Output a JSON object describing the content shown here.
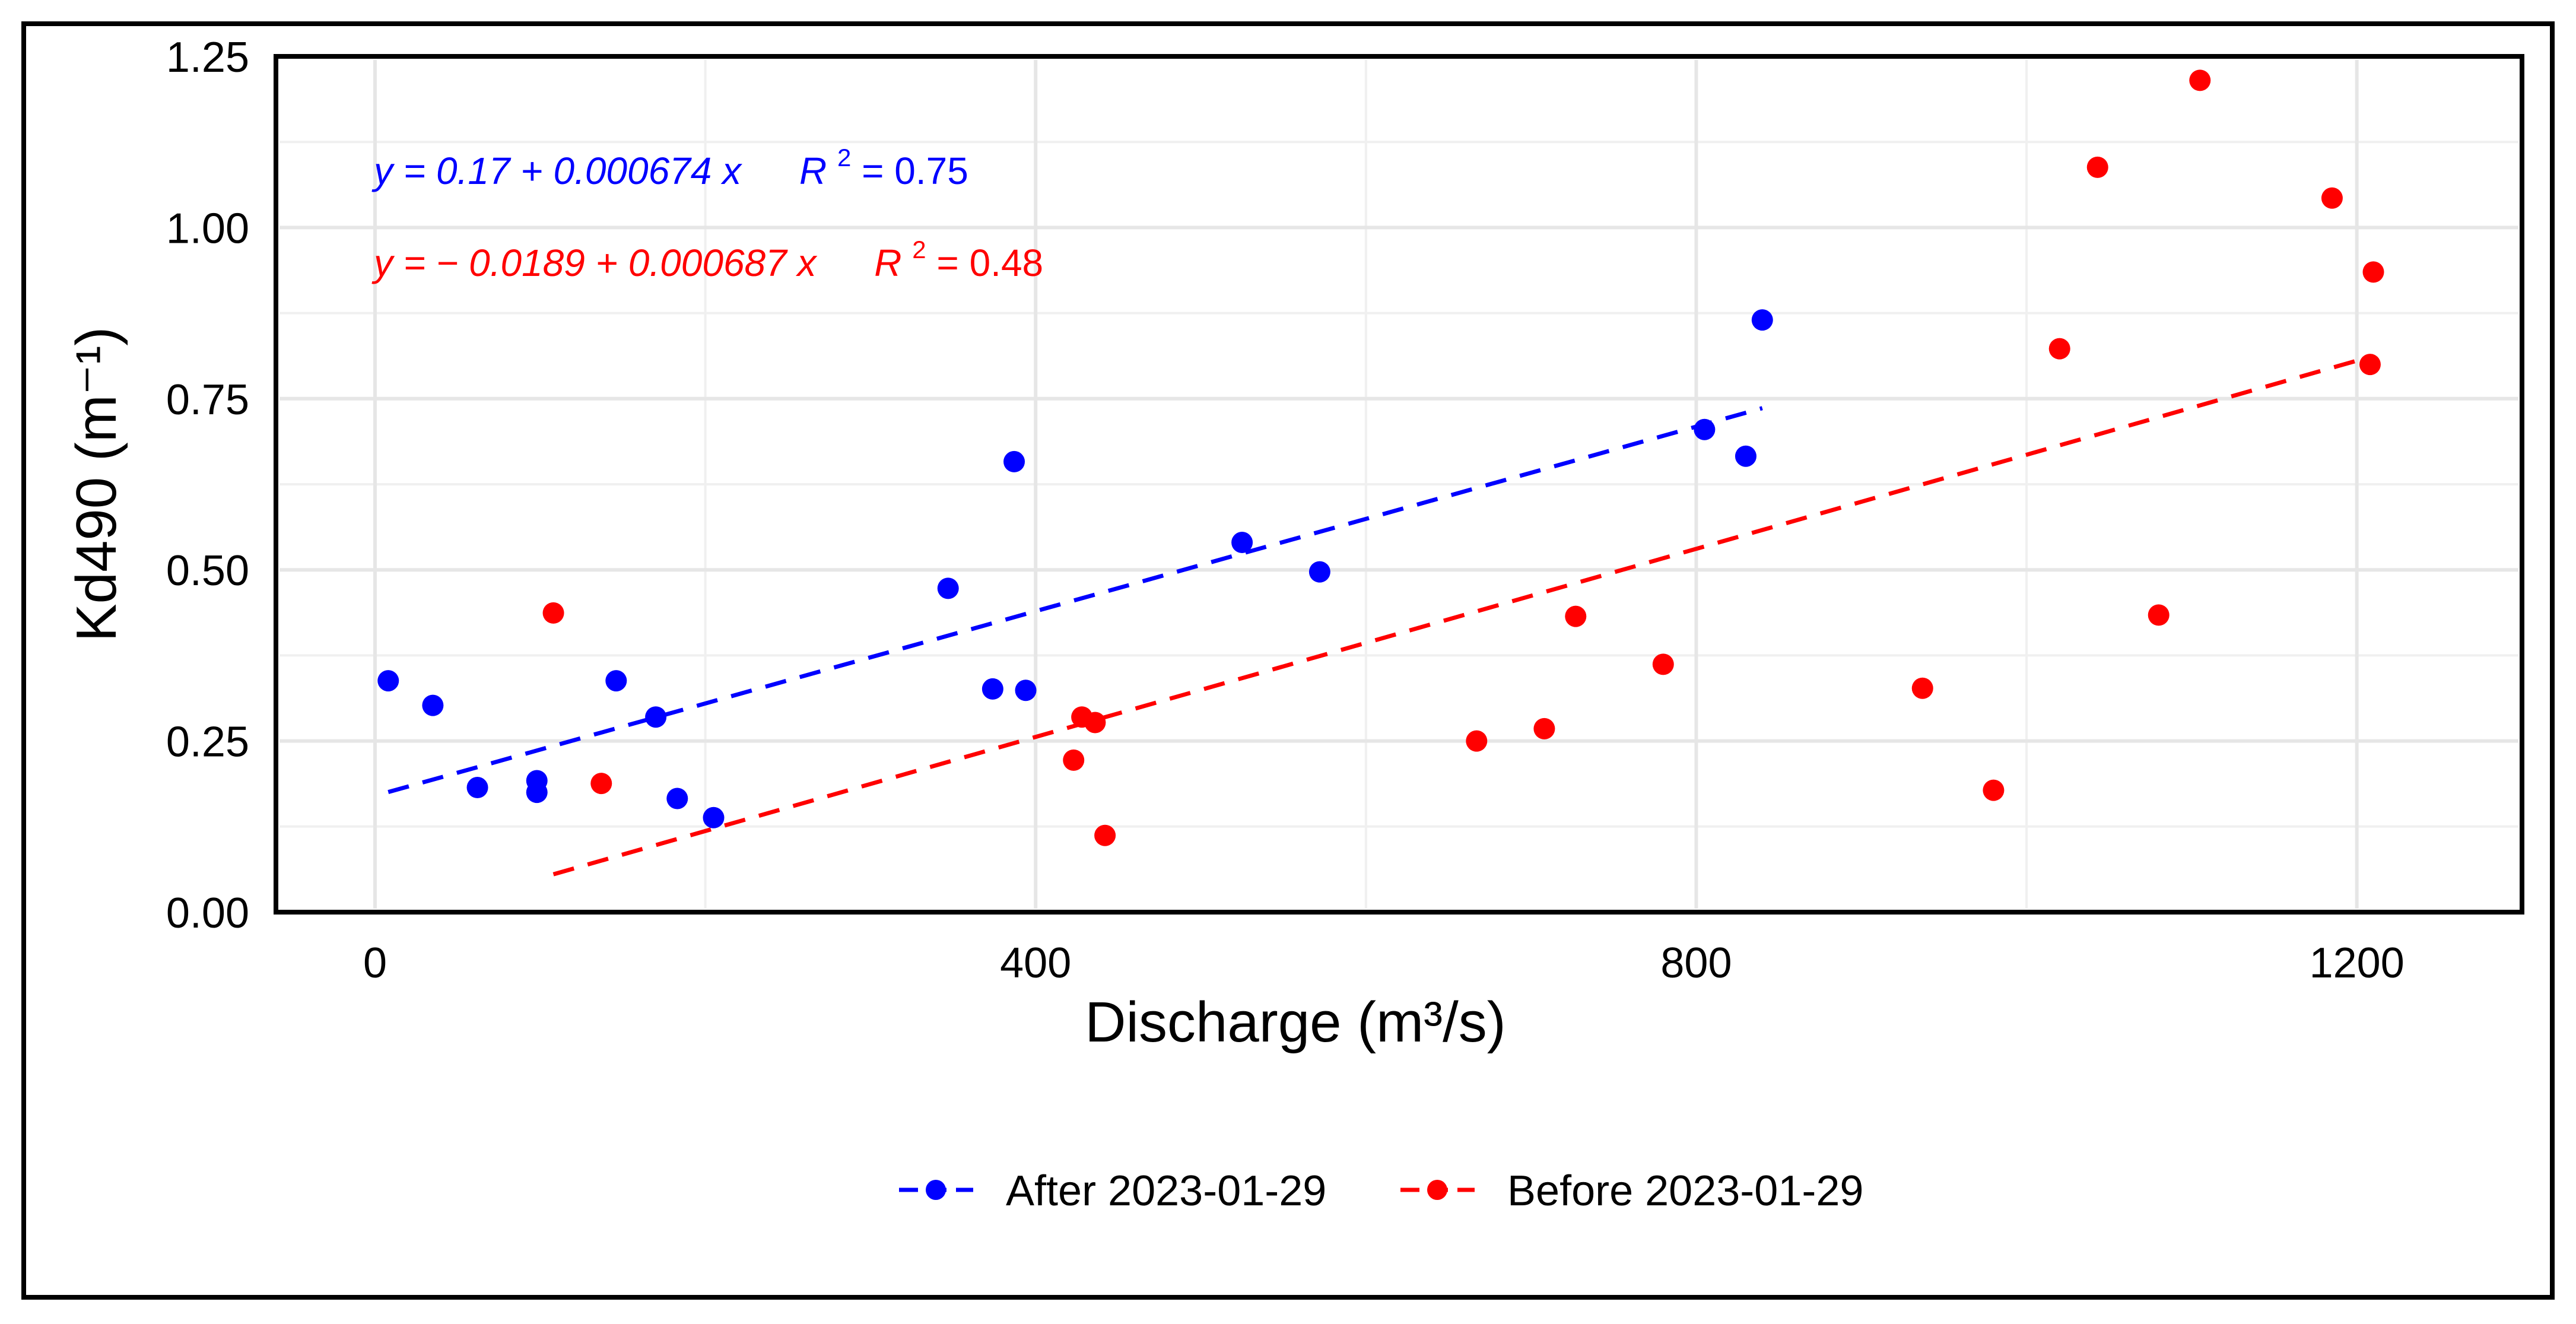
{
  "chart_data": {
    "type": "scatter",
    "title": "",
    "xlabel": "Discharge (m³/s)",
    "ylabel": "Kd490 (m⁻¹)",
    "xlim": [
      -60,
      1300
    ],
    "ylim": [
      0,
      1.25
    ],
    "x_ticks": [
      0,
      400,
      800,
      1200
    ],
    "y_ticks": [
      0.0,
      0.25,
      0.5,
      0.75,
      1.0,
      1.25
    ],
    "x_tick_labels": [
      "0",
      "400",
      "800",
      "1200"
    ],
    "y_tick_labels": [
      "0.00",
      "0.25",
      "0.50",
      "0.75",
      "1.00",
      "1.25"
    ],
    "grid": true,
    "legend_position": "bottom",
    "series": [
      {
        "name": "After 2023-01-29",
        "color": "#0000ff",
        "points": [
          {
            "x": 8,
            "y": 0.338
          },
          {
            "x": 35,
            "y": 0.302
          },
          {
            "x": 62,
            "y": 0.182
          },
          {
            "x": 98,
            "y": 0.192
          },
          {
            "x": 98,
            "y": 0.175
          },
          {
            "x": 146,
            "y": 0.338
          },
          {
            "x": 170,
            "y": 0.285
          },
          {
            "x": 183,
            "y": 0.166
          },
          {
            "x": 205,
            "y": 0.138
          },
          {
            "x": 347,
            "y": 0.473
          },
          {
            "x": 374,
            "y": 0.326
          },
          {
            "x": 387,
            "y": 0.658
          },
          {
            "x": 394,
            "y": 0.324
          },
          {
            "x": 525,
            "y": 0.54
          },
          {
            "x": 572,
            "y": 0.497
          },
          {
            "x": 805,
            "y": 0.705
          },
          {
            "x": 830,
            "y": 0.666
          },
          {
            "x": 840,
            "y": 0.865
          }
        ],
        "fit": {
          "intercept": 0.17,
          "slope": 0.000674,
          "x_range": [
            8,
            840
          ],
          "r2": 0.75
        }
      },
      {
        "name": "Before 2023-01-29",
        "color": "#ff0000",
        "points": [
          {
            "x": 108,
            "y": 0.437
          },
          {
            "x": 137,
            "y": 0.188
          },
          {
            "x": 423,
            "y": 0.222
          },
          {
            "x": 428,
            "y": 0.285
          },
          {
            "x": 436,
            "y": 0.277
          },
          {
            "x": 442,
            "y": 0.112
          },
          {
            "x": 667,
            "y": 0.25
          },
          {
            "x": 708,
            "y": 0.268
          },
          {
            "x": 727,
            "y": 0.432
          },
          {
            "x": 780,
            "y": 0.362
          },
          {
            "x": 937,
            "y": 0.327
          },
          {
            "x": 980,
            "y": 0.178
          },
          {
            "x": 1020,
            "y": 0.823
          },
          {
            "x": 1043,
            "y": 1.088
          },
          {
            "x": 1080,
            "y": 0.434
          },
          {
            "x": 1105,
            "y": 1.215
          },
          {
            "x": 1185,
            "y": 1.043
          },
          {
            "x": 1208,
            "y": 0.8
          },
          {
            "x": 1210,
            "y": 0.935
          }
        ],
        "fit": {
          "intercept": -0.0189,
          "slope": 0.000687,
          "x_range": [
            108,
            1210
          ],
          "r2": 0.48
        }
      }
    ],
    "annotations": [
      {
        "series": "After 2023-01-29",
        "text": "y = 0.17 + 0.000674 x",
        "r2_label": "R",
        "r2_sup": "2",
        "r2_value": " = 0.75",
        "color": "#0000ff"
      },
      {
        "series": "Before 2023-01-29",
        "text": "y = − 0.0189 + 0.000687 x",
        "r2_label": "R",
        "r2_sup": "2",
        "r2_value": " = 0.48",
        "color": "#ff0000"
      }
    ]
  }
}
